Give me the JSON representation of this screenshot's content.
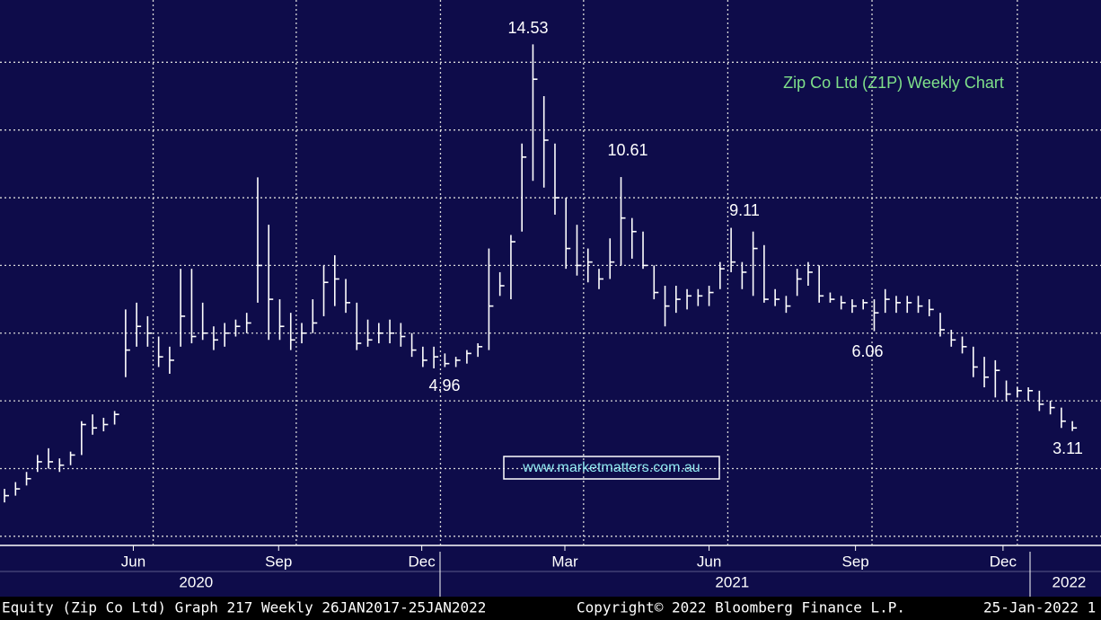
{
  "chart_data": {
    "type": "hlc",
    "title": "Zip Co Ltd (Z1P) Weekly Chart",
    "watermark": "www.marketmatters.com.au",
    "footer": {
      "left": "Equity (Zip Co Ltd) Graph 217  Weekly 26JAN2017-25JAN2022",
      "center": "Copyright© 2022 Bloomberg Finance L.P.",
      "right": "25-Jan-2022 1"
    },
    "color": "#ffffff",
    "high": [
      1.4,
      1.6,
      1.9,
      2.4,
      2.6,
      2.3,
      2.5,
      3.4,
      3.6,
      3.5,
      3.7,
      6.7,
      6.9,
      6.5,
      5.9,
      5.6,
      7.9,
      7.9,
      6.9,
      6.2,
      6.3,
      6.4,
      6.6,
      10.6,
      9.2,
      7.0,
      6.6,
      6.3,
      7.0,
      8.0,
      8.3,
      7.6,
      6.9,
      6.4,
      6.3,
      6.4,
      6.3,
      6.0,
      5.6,
      5.6,
      5.4,
      5.3,
      5.5,
      5.7,
      8.5,
      7.8,
      8.9,
      11.6,
      14.53,
      13.0,
      11.6,
      10.0,
      9.2,
      8.5,
      7.9,
      8.8,
      10.61,
      9.4,
      9.0,
      8.0,
      7.4,
      7.4,
      7.3,
      7.3,
      7.4,
      8.1,
      9.11,
      8.1,
      9.0,
      8.6,
      7.3,
      7.1,
      7.9,
      8.1,
      8.0,
      7.2,
      7.1,
      7.0,
      7.0,
      7.0,
      7.3,
      7.1,
      7.1,
      7.1,
      7.0,
      6.6,
      6.1,
      5.9,
      5.6,
      5.3,
      5.2,
      4.6,
      4.4,
      4.4,
      4.3,
      4.0,
      3.8,
      3.4
    ],
    "low": [
      1.0,
      1.2,
      1.5,
      1.9,
      2.0,
      1.9,
      2.1,
      2.4,
      3.0,
      3.1,
      3.3,
      4.7,
      5.6,
      5.6,
      5.0,
      4.8,
      5.6,
      5.7,
      5.8,
      5.5,
      5.6,
      5.9,
      6.0,
      6.9,
      5.8,
      5.8,
      5.5,
      5.7,
      6.0,
      6.5,
      6.8,
      6.6,
      5.5,
      5.6,
      5.7,
      5.7,
      5.6,
      5.3,
      5.0,
      4.96,
      5.0,
      5.0,
      5.1,
      5.3,
      5.5,
      7.1,
      7.0,
      9.0,
      10.5,
      10.3,
      9.5,
      7.9,
      7.7,
      7.5,
      7.3,
      7.6,
      8.0,
      8.2,
      7.9,
      7.0,
      6.2,
      6.6,
      6.7,
      6.8,
      6.8,
      7.3,
      7.8,
      7.3,
      7.1,
      6.9,
      6.8,
      6.6,
      7.1,
      7.4,
      6.9,
      6.9,
      6.7,
      6.6,
      6.7,
      6.06,
      6.6,
      6.6,
      6.6,
      6.6,
      6.5,
      5.9,
      5.6,
      5.4,
      4.7,
      4.4,
      4.1,
      4.0,
      4.1,
      4.0,
      3.7,
      3.6,
      3.2,
      3.11
    ],
    "close": [
      1.2,
      1.4,
      1.7,
      2.2,
      2.2,
      2.1,
      2.4,
      3.3,
      3.2,
      3.3,
      3.6,
      5.5,
      6.2,
      6.0,
      5.3,
      5.2,
      6.5,
      5.9,
      6.0,
      5.8,
      6.0,
      6.2,
      6.3,
      8.0,
      7.0,
      6.2,
      5.8,
      6.0,
      6.3,
      7.5,
      7.6,
      6.9,
      5.7,
      5.8,
      6.0,
      6.0,
      5.9,
      5.5,
      5.2,
      5.3,
      5.1,
      5.2,
      5.4,
      5.6,
      6.8,
      7.4,
      8.7,
      11.2,
      13.5,
      11.7,
      10.0,
      8.5,
      8.0,
      8.1,
      7.6,
      8.1,
      9.4,
      9.0,
      8.0,
      7.2,
      6.8,
      7.0,
      7.1,
      7.1,
      7.2,
      7.9,
      8.1,
      7.8,
      8.5,
      7.0,
      7.0,
      6.8,
      7.6,
      7.8,
      7.1,
      7.0,
      6.9,
      6.8,
      6.9,
      6.6,
      7.0,
      6.9,
      6.9,
      6.8,
      6.7,
      6.1,
      5.8,
      5.6,
      5.0,
      4.7,
      4.9,
      4.2,
      4.3,
      4.3,
      3.9,
      3.8,
      3.4,
      3.2
    ],
    "annotations": [
      {
        "label": "14.53",
        "value": 14.53
      },
      {
        "label": "10.61",
        "value": 10.61
      },
      {
        "label": "9.11",
        "value": 9.11
      },
      {
        "label": "4.96",
        "value": 4.96
      },
      {
        "label": "6.06",
        "value": 6.06
      },
      {
        "label": "3.11",
        "value": 3.11
      }
    ],
    "xlim": [
      -0.41,
      99.6
    ],
    "ylim": [
      -0.27,
      15.84
    ],
    "ygrid": [
      0,
      2,
      4,
      6,
      8,
      10,
      12,
      14
    ],
    "xgrid": [
      13.5,
      26.5,
      39.6,
      52.6,
      65.7,
      78.8,
      92.0
    ],
    "xticks": [
      {
        "value": 11.7,
        "label": "Jun"
      },
      {
        "value": 24.9,
        "label": "Sep"
      },
      {
        "value": 37.9,
        "label": "Dec"
      },
      {
        "value": 50.9,
        "label": "Mar"
      },
      {
        "value": 64.0,
        "label": "Jun"
      },
      {
        "value": 77.3,
        "label": "Sep"
      },
      {
        "value": 90.7,
        "label": "Dec"
      }
    ],
    "years": [
      {
        "value": 17.4,
        "label": "2020"
      },
      {
        "value": 66.1,
        "label": "2021"
      },
      {
        "value": 96.7,
        "label": "2022"
      }
    ],
    "grid": true
  }
}
